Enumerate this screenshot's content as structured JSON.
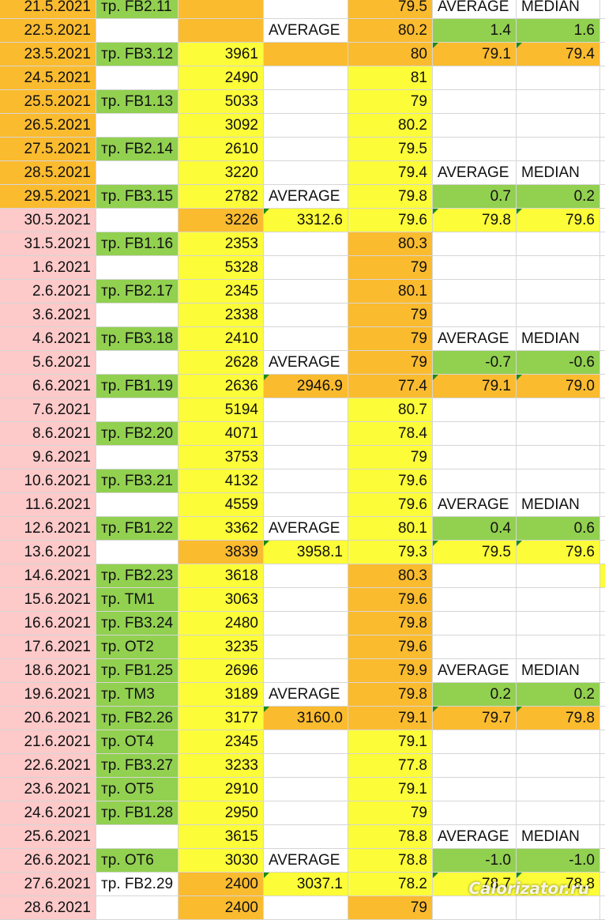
{
  "colors": {
    "orange": "#fbbb2f",
    "yellow": "#fcfc38",
    "green": "#92d050",
    "pink": "#fdc9c9",
    "white": "#ffffff"
  },
  "rows": [
    {
      "date": "21.5.2021",
      "date_bg": "orange",
      "tr": "тр. FB2.11",
      "tr_bg": "green",
      "cal": "",
      "cal_bg": "orange",
      "avg": "",
      "avg_bg": "white",
      "wt": "79.5",
      "wt_bg": "orange",
      "h1": "AVERAGE",
      "h1_bg": "white",
      "h2": "MEDIAN",
      "h2_bg": "white"
    },
    {
      "date": "22.5.2021",
      "date_bg": "orange",
      "tr": "",
      "tr_bg": "white",
      "cal": "",
      "cal_bg": "orange",
      "avg": "AVERAGE",
      "avg_bg": "white",
      "wt": "80.2",
      "wt_bg": "orange",
      "h1": "1.4",
      "h1_bg": "green",
      "h2": "1.6",
      "h2_bg": "green"
    },
    {
      "date": "23.5.2021",
      "date_bg": "orange",
      "tr": "тр. FB3.12",
      "tr_bg": "green",
      "cal": "3961",
      "cal_bg": "yellow",
      "avg": "",
      "avg_bg": "orange",
      "wt": "80",
      "wt_bg": "orange",
      "h1": "79.1",
      "h1_bg": "orange",
      "h1_tri": true,
      "h2": "79.4",
      "h2_bg": "orange",
      "h2_tri": true
    },
    {
      "date": "24.5.2021",
      "date_bg": "orange",
      "tr": "",
      "tr_bg": "white",
      "cal": "2490",
      "cal_bg": "yellow",
      "avg": "",
      "avg_bg": "white",
      "wt": "81",
      "wt_bg": "yellow",
      "h1": "",
      "h1_bg": "white",
      "h2": "",
      "h2_bg": "white"
    },
    {
      "date": "25.5.2021",
      "date_bg": "orange",
      "tr": "тр. FB1.13",
      "tr_bg": "green",
      "cal": "5033",
      "cal_bg": "yellow",
      "avg": "",
      "avg_bg": "white",
      "wt": "79",
      "wt_bg": "yellow",
      "h1": "",
      "h1_bg": "white",
      "h2": "",
      "h2_bg": "white"
    },
    {
      "date": "26.5.2021",
      "date_bg": "orange",
      "tr": "",
      "tr_bg": "white",
      "cal": "3092",
      "cal_bg": "yellow",
      "avg": "",
      "avg_bg": "white",
      "wt": "80.2",
      "wt_bg": "yellow",
      "h1": "",
      "h1_bg": "white",
      "h2": "",
      "h2_bg": "white"
    },
    {
      "date": "27.5.2021",
      "date_bg": "orange",
      "tr": "тр. FB2.14",
      "tr_bg": "green",
      "cal": "2610",
      "cal_bg": "yellow",
      "avg": "",
      "avg_bg": "white",
      "wt": "79.5",
      "wt_bg": "yellow",
      "h1": "",
      "h1_bg": "white",
      "h2": "",
      "h2_bg": "white"
    },
    {
      "date": "28.5.2021",
      "date_bg": "orange",
      "tr": "",
      "tr_bg": "white",
      "cal": "3220",
      "cal_bg": "yellow",
      "avg": "",
      "avg_bg": "white",
      "wt": "79.4",
      "wt_bg": "yellow",
      "h1": "AVERAGE",
      "h1_bg": "white",
      "h2": "MEDIAN",
      "h2_bg": "white"
    },
    {
      "date": "29.5.2021",
      "date_bg": "orange",
      "tr": "тр. FB3.15",
      "tr_bg": "green",
      "cal": "2782",
      "cal_bg": "yellow",
      "avg": "AVERAGE",
      "avg_bg": "white",
      "wt": "79.8",
      "wt_bg": "yellow",
      "h1": "0.7",
      "h1_bg": "green",
      "h2": "0.2",
      "h2_bg": "green"
    },
    {
      "date": "30.5.2021",
      "date_bg": "pink",
      "tr": "",
      "tr_bg": "white",
      "cal": "3226",
      "cal_bg": "orange",
      "avg": "3312.6",
      "avg_bg": "yellow",
      "avg_tri": true,
      "wt": "79.6",
      "wt_bg": "yellow",
      "h1": "79.8",
      "h1_bg": "yellow",
      "h1_tri": true,
      "h2": "79.6",
      "h2_bg": "yellow",
      "h2_tri": true
    },
    {
      "date": "31.5.2021",
      "date_bg": "pink",
      "tr": "тр. FB1.16",
      "tr_bg": "green",
      "cal": "2353",
      "cal_bg": "yellow",
      "avg": "",
      "avg_bg": "white",
      "wt": "80.3",
      "wt_bg": "orange",
      "h1": "",
      "h1_bg": "white",
      "h2": "",
      "h2_bg": "white"
    },
    {
      "date": "1.6.2021",
      "date_bg": "pink",
      "tr": "",
      "tr_bg": "white",
      "cal": "5328",
      "cal_bg": "yellow",
      "avg": "",
      "avg_bg": "white",
      "wt": "79",
      "wt_bg": "orange",
      "h1": "",
      "h1_bg": "white",
      "h2": "",
      "h2_bg": "white"
    },
    {
      "date": "2.6.2021",
      "date_bg": "pink",
      "tr": "тр. FB2.17",
      "tr_bg": "green",
      "cal": "2345",
      "cal_bg": "yellow",
      "avg": "",
      "avg_bg": "white",
      "wt": "80.1",
      "wt_bg": "orange",
      "h1": "",
      "h1_bg": "white",
      "h2": "",
      "h2_bg": "white"
    },
    {
      "date": "3.6.2021",
      "date_bg": "pink",
      "tr": "",
      "tr_bg": "white",
      "cal": "2338",
      "cal_bg": "yellow",
      "avg": "",
      "avg_bg": "white",
      "wt": "79",
      "wt_bg": "orange",
      "h1": "",
      "h1_bg": "white",
      "h2": "",
      "h2_bg": "white"
    },
    {
      "date": "4.6.2021",
      "date_bg": "pink",
      "tr": "тр. FB3.18",
      "tr_bg": "green",
      "cal": "2410",
      "cal_bg": "yellow",
      "avg": "",
      "avg_bg": "white",
      "wt": "79",
      "wt_bg": "orange",
      "h1": "AVERAGE",
      "h1_bg": "white",
      "h2": "MEDIAN",
      "h2_bg": "white"
    },
    {
      "date": "5.6.2021",
      "date_bg": "pink",
      "tr": "",
      "tr_bg": "white",
      "cal": "2628",
      "cal_bg": "yellow",
      "avg": "AVERAGE",
      "avg_bg": "white",
      "wt": "79",
      "wt_bg": "orange",
      "h1": "-0.7",
      "h1_bg": "green",
      "h2": "-0.6",
      "h2_bg": "green"
    },
    {
      "date": "6.6.2021",
      "date_bg": "pink",
      "tr": "тр. FB1.19",
      "tr_bg": "green",
      "cal": "2636",
      "cal_bg": "yellow",
      "avg": "2946.9",
      "avg_bg": "orange",
      "avg_tri": true,
      "wt": "77.4",
      "wt_bg": "orange",
      "h1": "79.1",
      "h1_bg": "orange",
      "h1_tri": true,
      "h2": "79.0",
      "h2_bg": "orange",
      "h2_tri": true
    },
    {
      "date": "7.6.2021",
      "date_bg": "pink",
      "tr": "",
      "tr_bg": "white",
      "cal": "5194",
      "cal_bg": "yellow",
      "avg": "",
      "avg_bg": "white",
      "wt": "80.7",
      "wt_bg": "yellow",
      "h1": "",
      "h1_bg": "white",
      "h2": "",
      "h2_bg": "white"
    },
    {
      "date": "8.6.2021",
      "date_bg": "pink",
      "tr": "тр. FB2.20",
      "tr_bg": "green",
      "cal": "4071",
      "cal_bg": "yellow",
      "avg": "",
      "avg_bg": "white",
      "wt": "78.4",
      "wt_bg": "yellow",
      "h1": "",
      "h1_bg": "white",
      "h2": "",
      "h2_bg": "white"
    },
    {
      "date": "9.6.2021",
      "date_bg": "pink",
      "tr": "",
      "tr_bg": "white",
      "cal": "3753",
      "cal_bg": "yellow",
      "avg": "",
      "avg_bg": "white",
      "wt": "79",
      "wt_bg": "yellow",
      "h1": "",
      "h1_bg": "white",
      "h2": "",
      "h2_bg": "white"
    },
    {
      "date": "10.6.2021",
      "date_bg": "pink",
      "tr": "тр. FB3.21",
      "tr_bg": "green",
      "cal": "4132",
      "cal_bg": "yellow",
      "avg": "",
      "avg_bg": "white",
      "wt": "79.6",
      "wt_bg": "yellow",
      "h1": "",
      "h1_bg": "white",
      "h2": "",
      "h2_bg": "white"
    },
    {
      "date": "11.6.2021",
      "date_bg": "pink",
      "tr": "",
      "tr_bg": "white",
      "cal": "4559",
      "cal_bg": "yellow",
      "avg": "",
      "avg_bg": "white",
      "wt": "79.6",
      "wt_bg": "yellow",
      "h1": "AVERAGE",
      "h1_bg": "white",
      "h2": "MEDIAN",
      "h2_bg": "white"
    },
    {
      "date": "12.6.2021",
      "date_bg": "pink",
      "tr": "тр. FB1.22",
      "tr_bg": "green",
      "cal": "3362",
      "cal_bg": "yellow",
      "avg": "AVERAGE",
      "avg_bg": "white",
      "wt": "80.1",
      "wt_bg": "yellow",
      "h1": "0.4",
      "h1_bg": "green",
      "h2": "0.6",
      "h2_bg": "green"
    },
    {
      "date": "13.6.2021",
      "date_bg": "pink",
      "tr": "",
      "tr_bg": "white",
      "cal": "3839",
      "cal_bg": "orange",
      "avg": "3958.1",
      "avg_bg": "yellow",
      "avg_tri": true,
      "wt": "79.3",
      "wt_bg": "yellow",
      "h1": "79.5",
      "h1_bg": "yellow",
      "h1_tri": true,
      "h2": "79.6",
      "h2_bg": "yellow",
      "h2_tri": true
    },
    {
      "date": "14.6.2021",
      "date_bg": "pink",
      "tr": "тр. FB2.23",
      "tr_bg": "green",
      "cal": "3618",
      "cal_bg": "yellow",
      "avg": "",
      "avg_bg": "white",
      "wt": "80.3",
      "wt_bg": "orange",
      "h1": "",
      "h1_bg": "white",
      "h2": "",
      "h2_bg": "white",
      "edge": "yellow"
    },
    {
      "date": "15.6.2021",
      "date_bg": "pink",
      "tr": "тр. ТМ1",
      "tr_bg": "green",
      "cal": "3063",
      "cal_bg": "yellow",
      "avg": "",
      "avg_bg": "white",
      "wt": "79.6",
      "wt_bg": "orange",
      "h1": "",
      "h1_bg": "white",
      "h2": "",
      "h2_bg": "white"
    },
    {
      "date": "16.6.2021",
      "date_bg": "pink",
      "tr": "тр. FB3.24",
      "tr_bg": "green",
      "cal": "2480",
      "cal_bg": "yellow",
      "avg": "",
      "avg_bg": "white",
      "wt": "79.8",
      "wt_bg": "orange",
      "h1": "",
      "h1_bg": "white",
      "h2": "",
      "h2_bg": "white"
    },
    {
      "date": "17.6.2021",
      "date_bg": "pink",
      "tr": "тр. ОТ2",
      "tr_bg": "green",
      "cal": "3235",
      "cal_bg": "yellow",
      "avg": "",
      "avg_bg": "white",
      "wt": "79.6",
      "wt_bg": "orange",
      "h1": "",
      "h1_bg": "white",
      "h2": "",
      "h2_bg": "white"
    },
    {
      "date": "18.6.2021",
      "date_bg": "pink",
      "tr": "тр. FB1.25",
      "tr_bg": "green",
      "cal": "2696",
      "cal_bg": "yellow",
      "avg": "",
      "avg_bg": "white",
      "wt": "79.9",
      "wt_bg": "orange",
      "h1": "AVERAGE",
      "h1_bg": "white",
      "h2": "MEDIAN",
      "h2_bg": "white"
    },
    {
      "date": "19.6.2021",
      "date_bg": "pink",
      "tr": "тр. ТМ3",
      "tr_bg": "green",
      "cal": "3189",
      "cal_bg": "yellow",
      "avg": "AVERAGE",
      "avg_bg": "white",
      "wt": "79.8",
      "wt_bg": "orange",
      "h1": "0.2",
      "h1_bg": "green",
      "h2": "0.2",
      "h2_bg": "green"
    },
    {
      "date": "20.6.2021",
      "date_bg": "pink",
      "tr": "тр. FB2.26",
      "tr_bg": "green",
      "cal": "3177",
      "cal_bg": "yellow",
      "avg": "3160.0",
      "avg_bg": "orange",
      "avg_tri": true,
      "wt": "79.1",
      "wt_bg": "orange",
      "h1": "79.7",
      "h1_bg": "orange",
      "h1_tri": true,
      "h2": "79.8",
      "h2_bg": "orange",
      "h2_tri": true
    },
    {
      "date": "21.6.2021",
      "date_bg": "pink",
      "tr": "тр. ОТ4",
      "tr_bg": "green",
      "cal": "2345",
      "cal_bg": "yellow",
      "avg": "",
      "avg_bg": "white",
      "wt": "79.1",
      "wt_bg": "yellow",
      "h1": "",
      "h1_bg": "white",
      "h2": "",
      "h2_bg": "white"
    },
    {
      "date": "22.6.2021",
      "date_bg": "pink",
      "tr": "тр. FB3.27",
      "tr_bg": "green",
      "cal": "3233",
      "cal_bg": "yellow",
      "avg": "",
      "avg_bg": "white",
      "wt": "77.8",
      "wt_bg": "yellow",
      "h1": "",
      "h1_bg": "white",
      "h2": "",
      "h2_bg": "white"
    },
    {
      "date": "23.6.2021",
      "date_bg": "pink",
      "tr": "тр. ОТ5",
      "tr_bg": "green",
      "cal": "2910",
      "cal_bg": "yellow",
      "avg": "",
      "avg_bg": "white",
      "wt": "79.1",
      "wt_bg": "yellow",
      "h1": "",
      "h1_bg": "white",
      "h2": "",
      "h2_bg": "white"
    },
    {
      "date": "24.6.2021",
      "date_bg": "pink",
      "tr": "тр. FB1.28",
      "tr_bg": "green",
      "cal": "2950",
      "cal_bg": "yellow",
      "avg": "",
      "avg_bg": "white",
      "wt": "79",
      "wt_bg": "yellow",
      "h1": "",
      "h1_bg": "white",
      "h2": "",
      "h2_bg": "white"
    },
    {
      "date": "25.6.2021",
      "date_bg": "pink",
      "tr": "",
      "tr_bg": "white",
      "cal": "3615",
      "cal_bg": "yellow",
      "avg": "",
      "avg_bg": "white",
      "wt": "78.8",
      "wt_bg": "yellow",
      "h1": "AVERAGE",
      "h1_bg": "white",
      "h2": "MEDIAN",
      "h2_bg": "white"
    },
    {
      "date": "26.6.2021",
      "date_bg": "pink",
      "tr": "тр. ОТ6",
      "tr_bg": "green",
      "cal": "3030",
      "cal_bg": "yellow",
      "avg": "AVERAGE",
      "avg_bg": "white",
      "wt": "78.8",
      "wt_bg": "yellow",
      "h1": "-1.0",
      "h1_bg": "green",
      "h2": "-1.0",
      "h2_bg": "green"
    },
    {
      "date": "27.6.2021",
      "date_bg": "pink",
      "tr": "тр. FB2.29",
      "tr_bg": "white",
      "cal": "2400",
      "cal_bg": "orange",
      "avg": "3037.1",
      "avg_bg": "yellow",
      "avg_tri": true,
      "wt": "78.2",
      "wt_bg": "yellow",
      "h1": "78.7",
      "h1_bg": "yellow",
      "h1_tri": true,
      "h2": "78.8",
      "h2_bg": "yellow",
      "h2_tri": true
    },
    {
      "date": "28.6.2021",
      "date_bg": "pink",
      "tr": "",
      "tr_bg": "white",
      "cal": "2400",
      "cal_bg": "orange",
      "avg": "",
      "avg_bg": "white",
      "wt": "79",
      "wt_bg": "orange",
      "h1": "",
      "h1_bg": "white",
      "h2": "",
      "h2_bg": "white"
    }
  ],
  "watermark": "Calorizator.ru"
}
